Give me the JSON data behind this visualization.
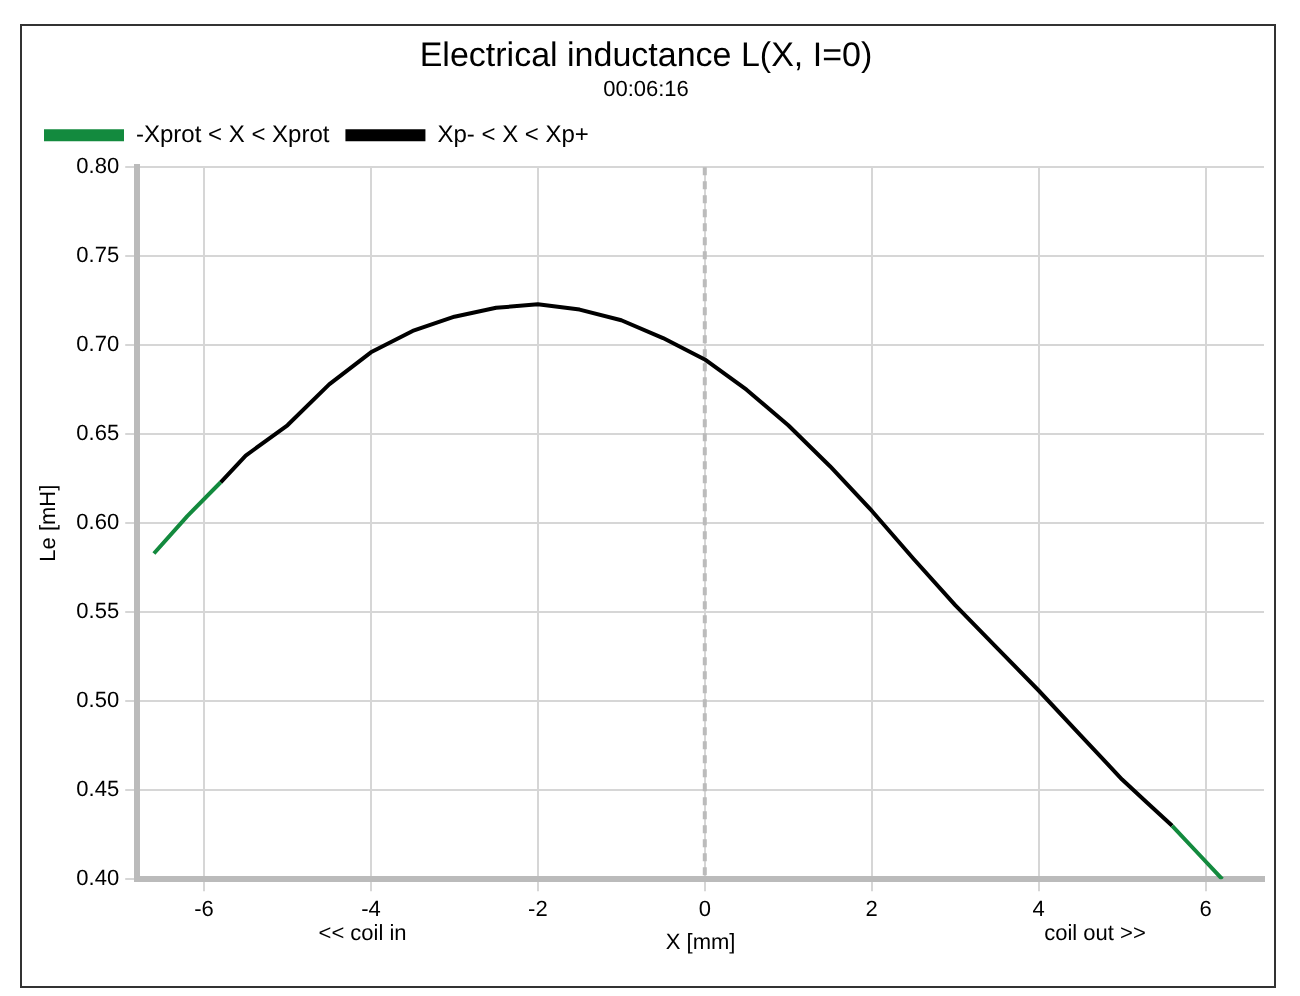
{
  "chart_data": {
    "type": "line",
    "title": "Electrical inductance L(X, I=0)",
    "subtitle": "00:06:16",
    "xlabel": "X [mm]",
    "ylabel": "Le [mH]",
    "annotations": [
      "<< coil in",
      "coil out >>"
    ],
    "series": [
      {
        "name": "-Xprot < X < Xprot",
        "color": "#138a3e",
        "x": [
          -6.6,
          -6.2,
          -5.8,
          null,
          5.6,
          5.9,
          6.2
        ],
        "values": [
          0.583,
          0.604,
          0.623,
          null,
          0.43,
          0.415,
          0.4
        ]
      },
      {
        "name": "Xp- < X < Xp+",
        "color": "#000000",
        "x": [
          -5.8,
          -5.5,
          -5,
          -4.5,
          -4,
          -3.5,
          -3,
          -2.5,
          -2,
          -1.5,
          -1,
          -0.5,
          0,
          0.5,
          1,
          1.5,
          2,
          2.5,
          3,
          3.5,
          4,
          4.5,
          5,
          5.3,
          5.6
        ],
        "values": [
          0.623,
          0.638,
          0.655,
          0.678,
          0.696,
          0.708,
          0.716,
          0.721,
          0.723,
          0.72,
          0.714,
          0.704,
          0.692,
          0.675,
          0.655,
          0.632,
          0.607,
          0.58,
          0.554,
          0.53,
          0.506,
          0.481,
          0.456,
          0.443,
          0.43
        ]
      }
    ],
    "xlim": [
      -6.8,
      6.7
    ],
    "xticks": [
      -6,
      -4,
      -2,
      0,
      2,
      4,
      6
    ],
    "ylim": [
      0.4,
      0.8
    ],
    "yticks": [
      {
        "value": 0.4,
        "label": "0.40"
      },
      {
        "value": 0.45,
        "label": "0.45"
      },
      {
        "value": 0.5,
        "label": "0.50"
      },
      {
        "value": 0.55,
        "label": "0.55"
      },
      {
        "value": 0.6,
        "label": "0.60"
      },
      {
        "value": 0.65,
        "label": "0.65"
      },
      {
        "value": 0.7,
        "label": "0.70"
      },
      {
        "value": 0.75,
        "label": "0.75"
      },
      {
        "value": 0.8,
        "label": "0.80"
      }
    ],
    "ref_lines": [
      {
        "axis": "x",
        "value": 0,
        "color": "#bbbbbb",
        "line_style": "dashed"
      }
    ],
    "grid": true,
    "legend": "top left",
    "marker": "none",
    "line_style": "solid"
  }
}
